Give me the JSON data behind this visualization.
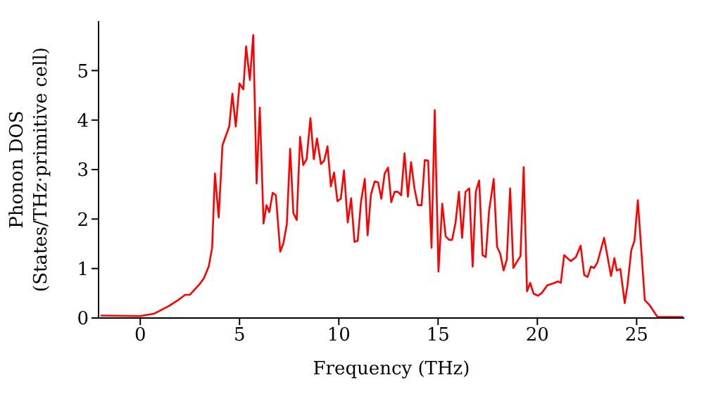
{
  "chart_data": {
    "type": "line",
    "xlabel": "Frequency (THz)",
    "ylabel": "Phonon DOS\n(States/THz·primitive cell)",
    "xlim": [
      -2.1,
      27.4
    ],
    "xticks": [
      0,
      5,
      10,
      15,
      20,
      25
    ],
    "ylim": [
      0,
      6
    ],
    "yticks": [
      0,
      1,
      2,
      3,
      4,
      5
    ],
    "series": [
      {
        "color": "#ff0000",
        "x": [
          -2.0,
          0,
          0.71,
          1.43,
          1.9,
          2.26,
          2.5,
          2.98,
          3.2,
          3.45,
          3.62,
          3.76,
          3.95,
          4.14,
          4.48,
          4.64,
          4.81,
          5.0,
          5.19,
          5.33,
          5.52,
          5.69,
          5.86,
          6.02,
          6.21,
          6.36,
          6.5,
          6.67,
          6.83,
          7.05,
          7.21,
          7.38,
          7.55,
          7.71,
          7.88,
          8.05,
          8.21,
          8.38,
          8.57,
          8.74,
          8.9,
          9.1,
          9.26,
          9.43,
          9.6,
          9.76,
          9.93,
          10.1,
          10.26,
          10.45,
          10.62,
          10.79,
          10.95,
          11.12,
          11.31,
          11.45,
          11.62,
          11.81,
          11.98,
          12.14,
          12.31,
          12.48,
          12.64,
          12.81,
          12.98,
          13.14,
          13.31,
          13.48,
          13.64,
          13.81,
          13.98,
          14.17,
          14.33,
          14.5,
          14.67,
          14.83,
          15.02,
          15.21,
          15.38,
          15.55,
          15.71,
          15.88,
          16.05,
          16.21,
          16.38,
          16.57,
          16.74,
          16.9,
          17.07,
          17.24,
          17.4,
          17.57,
          17.8,
          17.97,
          18.13,
          18.3,
          18.46,
          18.63,
          18.79,
          18.96,
          19.15,
          19.31,
          19.48,
          19.64,
          19.81,
          20.03,
          20.23,
          20.5,
          20.8,
          21.04,
          21.18,
          21.35,
          21.68,
          21.94,
          22.18,
          22.36,
          22.53,
          22.7,
          22.86,
          23.03,
          23.36,
          23.71,
          23.88,
          24.0,
          24.18,
          24.4,
          24.54,
          24.73,
          24.89,
          25.06,
          25.41,
          25.65,
          26.05,
          27.35
        ],
        "values": [
          0.05,
          0.04,
          0.09,
          0.24,
          0.36,
          0.47,
          0.47,
          0.68,
          0.8,
          1.04,
          1.42,
          2.92,
          2.03,
          3.49,
          3.87,
          4.53,
          3.87,
          4.74,
          4.62,
          5.49,
          4.81,
          5.72,
          2.72,
          4.25,
          1.91,
          2.28,
          2.14,
          2.53,
          2.48,
          1.34,
          1.51,
          1.89,
          3.42,
          2.12,
          1.98,
          3.66,
          3.09,
          3.21,
          4.04,
          3.21,
          3.63,
          3.11,
          3.18,
          3.47,
          2.66,
          2.94,
          2.36,
          2.41,
          2.98,
          1.93,
          2.42,
          1.54,
          1.56,
          2.36,
          2.81,
          1.67,
          2.5,
          2.76,
          2.74,
          2.41,
          2.92,
          3.04,
          2.34,
          2.55,
          2.55,
          2.48,
          3.33,
          2.45,
          3.15,
          2.62,
          2.28,
          2.28,
          3.19,
          3.18,
          1.42,
          4.2,
          0.94,
          2.31,
          1.65,
          1.58,
          1.58,
          1.93,
          2.55,
          1.62,
          2.55,
          2.62,
          1.04,
          2.55,
          2.78,
          1.27,
          1.23,
          2.17,
          2.81,
          1.44,
          1.3,
          0.96,
          1.18,
          2.62,
          1.01,
          1.13,
          1.25,
          3.05,
          0.54,
          0.71,
          0.49,
          0.45,
          0.51,
          0.66,
          0.7,
          0.74,
          0.71,
          1.27,
          1.15,
          1.23,
          1.46,
          0.87,
          0.83,
          1.04,
          1.01,
          1.13,
          1.62,
          0.85,
          1.21,
          0.96,
          0.99,
          0.3,
          0.66,
          1.37,
          1.56,
          2.38,
          0.36,
          0.26,
          0.02,
          0.02
        ]
      }
    ]
  }
}
